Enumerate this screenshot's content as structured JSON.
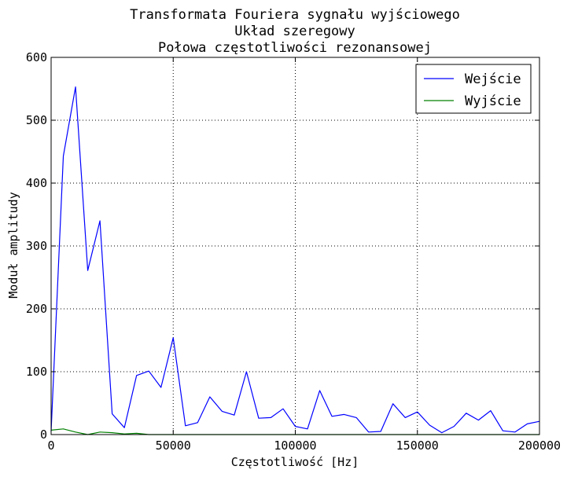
{
  "chart_data": {
    "type": "line",
    "title": [
      "Transformata Fouriera sygnału wyjściowego",
      "Układ szeregowy",
      "Połowa częstotliwości rezonansowej"
    ],
    "xlabel": "Częstotliwość [Hz]",
    "ylabel": "Moduł amplitudy",
    "xlim": [
      0,
      200000
    ],
    "ylim": [
      0,
      600
    ],
    "xticks": [
      0,
      50000,
      100000,
      150000,
      200000
    ],
    "xtick_labels": [
      "0",
      "50000",
      "100000",
      "150000",
      "200000"
    ],
    "yticks": [
      0,
      100,
      200,
      300,
      400,
      500,
      600
    ],
    "ytick_labels": [
      "0",
      "100",
      "200",
      "300",
      "400",
      "500",
      "600"
    ],
    "grid": true,
    "legend_position": "top-right",
    "x": [
      0,
      5000,
      10000,
      15000,
      20000,
      25000,
      30000,
      35000,
      40000,
      45000,
      50000,
      55000,
      60000,
      65000,
      70000,
      75000,
      80000,
      85000,
      90000,
      95000,
      100000,
      105000,
      110000,
      115000,
      120000,
      125000,
      130000,
      135000,
      140000,
      145000,
      150000,
      155000,
      160000,
      165000,
      170000,
      175000,
      180000,
      185000,
      190000,
      195000,
      200000
    ],
    "series": [
      {
        "name": "Wejście",
        "color": "#0000ff",
        "values": [
          5,
          443,
          553,
          261,
          340,
          33,
          11,
          94,
          101,
          75,
          154,
          14,
          19,
          60,
          37,
          31,
          100,
          26,
          27,
          41,
          13,
          9,
          70,
          29,
          32,
          27,
          4,
          5,
          49,
          27,
          36,
          15,
          3,
          13,
          34,
          23,
          38,
          6,
          4,
          17,
          21
        ]
      },
      {
        "name": "Wyjście",
        "color": "#008000",
        "values": [
          7,
          9,
          4,
          0,
          4,
          3,
          1,
          2,
          0,
          0,
          0,
          0,
          0,
          0,
          0,
          0,
          0,
          0,
          0,
          0,
          0,
          0,
          0,
          0,
          0,
          0,
          0,
          0,
          0,
          0,
          0,
          0,
          0,
          0,
          0,
          0,
          0,
          0,
          0,
          0,
          0
        ]
      }
    ]
  }
}
